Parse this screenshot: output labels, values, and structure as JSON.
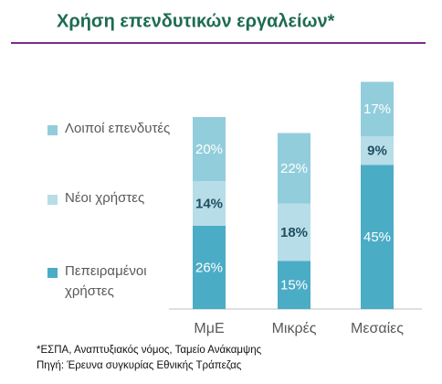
{
  "chart_data": {
    "type": "stacked_bar",
    "title": "Χρήση επενδυτικών εργαλείων*",
    "categories": [
      "ΜμΕ",
      "Μικρές",
      "Μεσαίες"
    ],
    "series": [
      {
        "name": "Πεπειραμένοι χρήστες",
        "color": "#4bacc6",
        "values": [
          26,
          15,
          45
        ],
        "value_labels": [
          "26%",
          "15%",
          "45%"
        ]
      },
      {
        "name": "Νέοι χρήστες",
        "color": "#b7dde8",
        "values": [
          14,
          18,
          9
        ],
        "value_labels": [
          "14%",
          "18%",
          "9%"
        ]
      },
      {
        "name": "Λοιποί επενδυτές",
        "color": "#92cddc",
        "values": [
          20,
          22,
          17
        ],
        "value_labels": [
          "20%",
          "22%",
          "17%"
        ]
      }
    ],
    "notes": [
      "*ΕΣΠΑ, Αναπτυξιακός νόμος, Ταμείο Ανάκαμψης",
      "Πηγή: Έρευνα συγκυρίας Εθνικής Τράπεζας"
    ]
  }
}
